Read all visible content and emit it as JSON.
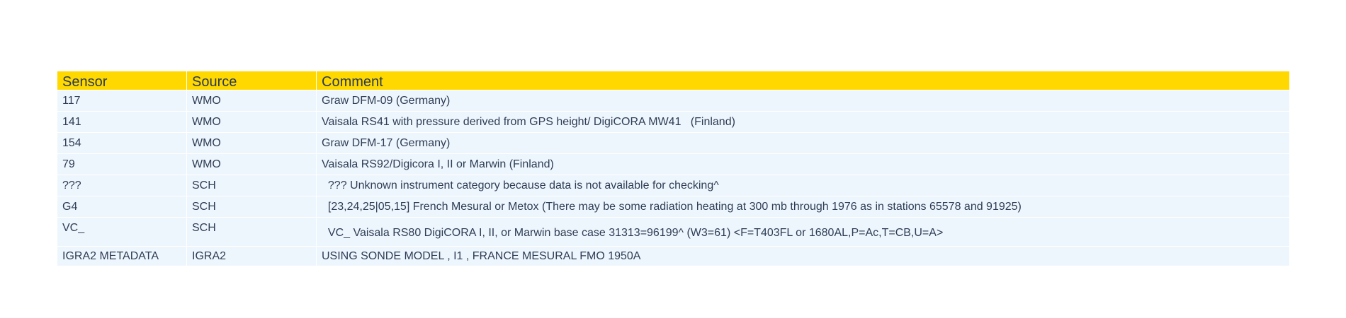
{
  "table": {
    "headers": {
      "sensor": "Sensor",
      "source": "Source",
      "comment": "Comment"
    },
    "rows": [
      {
        "sensor": "117",
        "source": "WMO",
        "comment": "Graw DFM-09 (Germany)"
      },
      {
        "sensor": "141",
        "source": "WMO",
        "comment": "Vaisala RS41 with pressure derived from GPS height/ DigiCORA MW41   (Finland)"
      },
      {
        "sensor": "154",
        "source": "WMO",
        "comment": "Graw DFM-17 (Germany)"
      },
      {
        "sensor": "79",
        "source": "WMO",
        "comment": "Vaisala RS92/Digicora I, II or Marwin (Finland)"
      },
      {
        "sensor": "???",
        "source": "SCH",
        "comment": "  ??? Unknown instrument category because data is not available for checking^"
      },
      {
        "sensor": "G4",
        "source": "SCH",
        "comment": "  [23,24,25|05,15] French Mesural or Metox (There may be some radiation heating at 300 mb through 1976 as in stations 65578 and 91925)"
      },
      {
        "sensor": "VC_",
        "source": "SCH",
        "comment": "  VC_ Vaisala RS80 DigiCORA I, II, or Marwin base case 31313=96199^ (W3=61) <F=T403FL or 1680AL,P=Ac,T=CB,U=A>"
      },
      {
        "sensor": "IGRA2 METADATA",
        "source": "IGRA2",
        "comment": "USING SONDE MODEL , I1 , FRANCE MESURAL FMO 1950A"
      }
    ]
  },
  "colors": {
    "header_bg": "#ffd800",
    "row_bg": "#eef6fd",
    "text": "#2e3d55"
  }
}
